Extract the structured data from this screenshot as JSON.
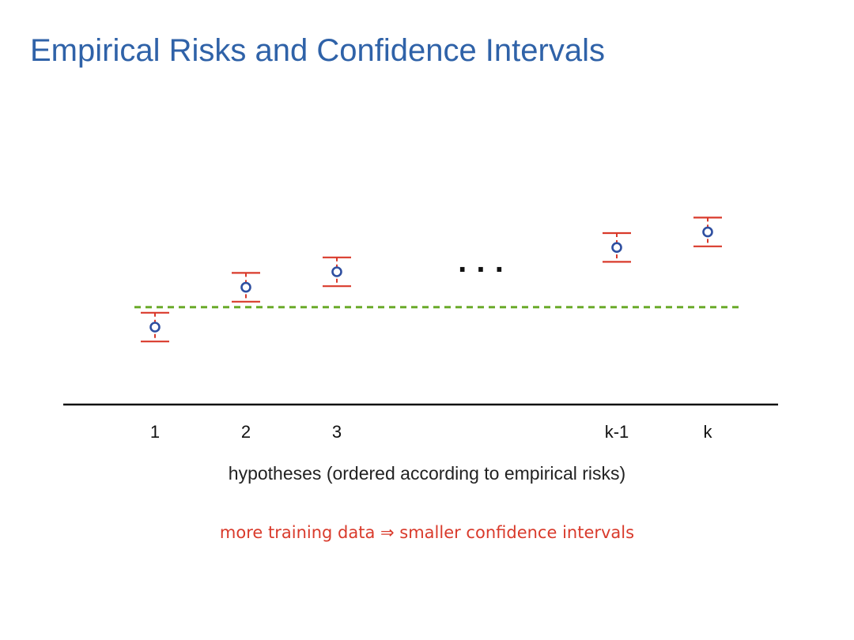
{
  "slide": {
    "title": "Empirical Risks and Confidence Intervals",
    "axis_caption": "hypotheses (ordered according to empirical risks)",
    "note": "more training data ⇒ smaller confidence intervals",
    "ellipsis": "· · ·"
  },
  "colors": {
    "title": "#2f62a8",
    "interval": "#d93a2b",
    "point": "#2f4fa0",
    "threshold": "#6aaa2a",
    "axis": "#111111",
    "note": "#d93a2b"
  },
  "chart_data": {
    "type": "scatter",
    "categories": [
      "1",
      "2",
      "3",
      "k-1",
      "k"
    ],
    "series": [
      {
        "estimates": [
          0.2,
          0.56,
          0.7,
          0.92,
          1.06
        ],
        "lower": [
          0.07,
          0.43,
          0.57,
          0.79,
          0.93
        ],
        "upper": [
          0.33,
          0.69,
          0.83,
          1.05,
          1.19
        ]
      }
    ],
    "reference_line": 0.38,
    "gap_between": [
      "3",
      "k-1"
    ],
    "ylim": [
      -0.5,
      1.3
    ]
  }
}
